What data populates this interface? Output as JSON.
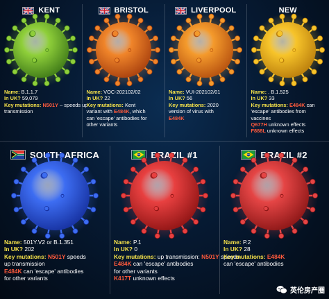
{
  "panels": [
    {
      "title": "KENT",
      "flag": "uk",
      "virus_color": "#8fcf3a",
      "virus_dark": "#3f7a18",
      "name": "B.1.1.7",
      "in_uk": "59,079",
      "lines": [
        {
          "pre": "",
          "mut": "N501Y",
          "post": " – speeds up"
        },
        {
          "pre": "transmission",
          "mut": "",
          "post": ""
        }
      ]
    },
    {
      "title": "BRISTOL",
      "flag": "uk",
      "virus_color": "#f0852a",
      "virus_dark": "#a8400e",
      "name": "VOC-202102/02",
      "in_uk": "22",
      "lines": [
        {
          "pre": "Kent",
          "mut": "",
          "post": ""
        },
        {
          "pre": "variant with ",
          "mut": "E484K",
          "post": ", which"
        },
        {
          "pre": "can 'escape' antibodies for",
          "mut": "",
          "post": ""
        },
        {
          "pre": "other variants",
          "mut": "",
          "post": ""
        }
      ]
    },
    {
      "title": "LIVERPOOL",
      "flag": "uk",
      "virus_color": "#f49a2c",
      "virus_dark": "#b5500f",
      "name": "VUI-202102/01",
      "in_uk": "56",
      "lines": [
        {
          "pre": "2020",
          "mut": "",
          "post": ""
        },
        {
          "pre": "version of virus with",
          "mut": "",
          "post": ""
        },
        {
          "pre": "",
          "mut": "E484K",
          "post": ""
        }
      ]
    },
    {
      "title": "NEW",
      "flag": "",
      "virus_color": "#f7c42a",
      "virus_dark": "#b97d0c",
      "name": ". B.1.525",
      "in_uk": "33",
      "lines": [
        {
          "pre": "",
          "mut": "E484K",
          "post": " can"
        },
        {
          "pre": "'escape' antibodies from",
          "mut": "",
          "post": ""
        },
        {
          "pre": "vaccines",
          "mut": "",
          "post": ""
        },
        {
          "pre": "",
          "mut": "Q677H",
          "post": " unknown effects"
        },
        {
          "pre": "",
          "mut": "F888L",
          "post": " unknown effects"
        }
      ]
    },
    {
      "title": "SOUTH AFRICA",
      "flag": "za",
      "virus_color": "#3d6df2",
      "virus_dark": "#16309e",
      "name": "501Y.V2 or B.1.351",
      "in_uk": "202",
      "lines": [
        {
          "pre": "",
          "mut": "N501Y",
          "post": " speeds"
        },
        {
          "pre": "up transmission",
          "mut": "",
          "post": ""
        },
        {
          "pre": "",
          "mut": "E484K",
          "post": " can 'escape' antibodies"
        },
        {
          "pre": "for other variants",
          "mut": "",
          "post": ""
        }
      ]
    },
    {
      "title": "BRAZIL #1",
      "flag": "br",
      "virus_color": "#e84040",
      "virus_dark": "#8e1414",
      "name": "P.1",
      "in_uk": "0",
      "lines": [
        {
          "pre": "up transmission: ",
          "mut": "N501Y",
          "post": " speeds"
        },
        {
          "pre": "",
          "mut": "E484K",
          "post": " can 'escape' antibodies"
        },
        {
          "pre": "for other variants",
          "mut": "",
          "post": ""
        },
        {
          "pre": "",
          "mut": "K417T",
          "post": " unknown effects"
        }
      ]
    },
    {
      "title": "BRAZIL #2",
      "flag": "br",
      "virus_color": "#e54545",
      "virus_dark": "#8a1616",
      "name": "P.2",
      "in_uk": "28",
      "lines": [
        {
          "pre": "",
          "mut": "E484K",
          "post": ""
        },
        {
          "pre": "can 'escape' antibodies",
          "mut": "",
          "post": ""
        }
      ]
    }
  ],
  "labels": {
    "name": "Name:",
    "in_uk": "In UK?",
    "key_mutations": "Key mutations:"
  },
  "watermark": "英伦房产圈",
  "watermark_icon": "wechat-icon"
}
